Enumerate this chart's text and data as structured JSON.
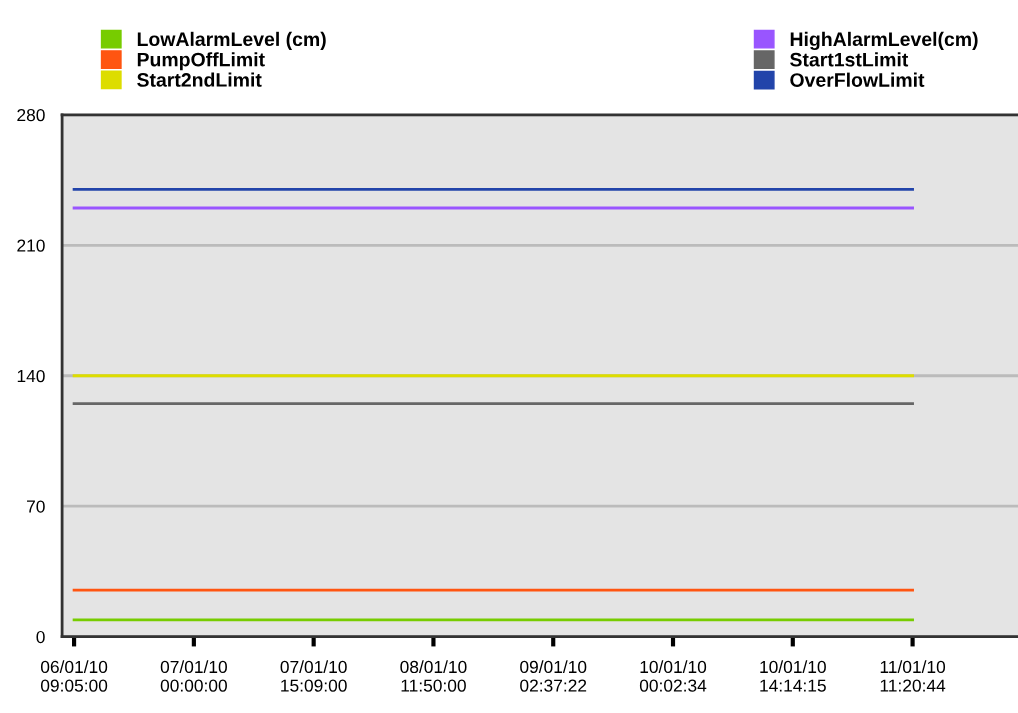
{
  "chart_data": {
    "type": "line",
    "categories": [
      "06/01/10\n09:05:00",
      "07/01/10\n00:00:00",
      "07/01/10\n15:09:00",
      "08/01/10\n11:50:00",
      "09/01/10\n02:37:22",
      "10/01/10\n00:02:34",
      "10/01/10\n14:14:15",
      "11/01/10\n11:20:44"
    ],
    "series": [
      {
        "name": "LowAlarmLevel (cm)",
        "color": "#77cc00",
        "values": [
          9,
          9,
          9,
          9,
          9,
          9,
          9,
          9
        ]
      },
      {
        "name": "PumpOffLimit",
        "color": "#ff5511",
        "values": [
          25,
          25,
          25,
          25,
          25,
          25,
          25,
          25
        ]
      },
      {
        "name": "Start2ndLimit",
        "color": "#dddd00",
        "values": [
          140,
          140,
          140,
          140,
          140,
          140,
          140,
          140
        ]
      },
      {
        "name": "HighAlarmLevel(cm)",
        "color": "#9955ff",
        "values": [
          230,
          230,
          230,
          230,
          230,
          230,
          230,
          230
        ]
      },
      {
        "name": "Start1stLimit",
        "color": "#666666",
        "values": [
          125,
          125,
          125,
          125,
          125,
          125,
          125,
          125
        ]
      },
      {
        "name": "OverFlowLimit",
        "color": "#2244aa",
        "values": [
          240,
          240,
          240,
          240,
          240,
          240,
          240,
          240
        ]
      }
    ],
    "ylim": [
      0,
      280
    ],
    "yticks": [
      0,
      70,
      140,
      210,
      280
    ],
    "grid": "y",
    "legend": "top",
    "marker": "none",
    "line_style": "solid"
  }
}
